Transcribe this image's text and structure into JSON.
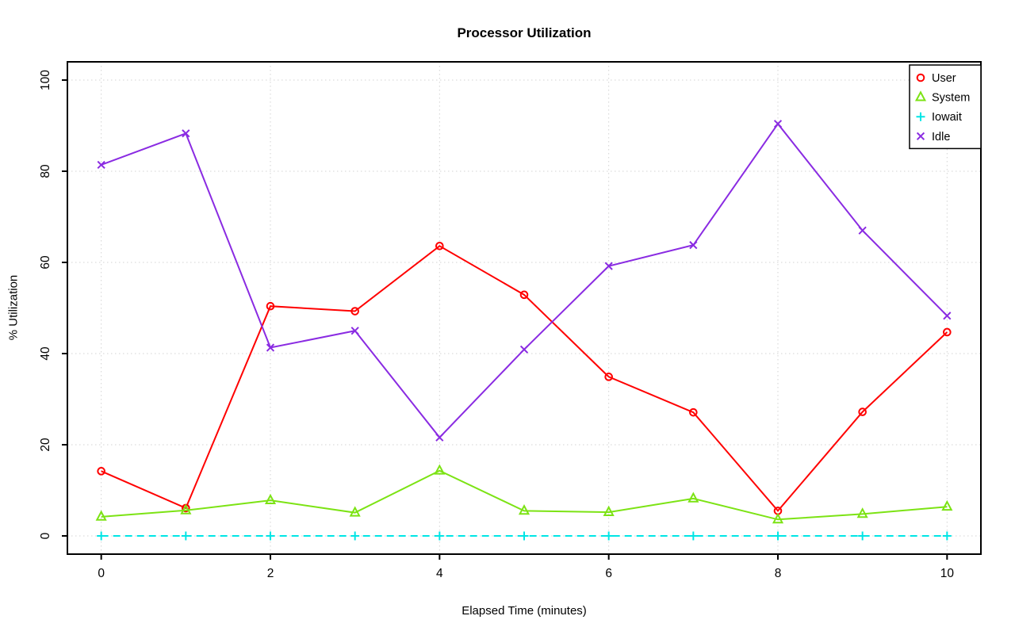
{
  "chart_data": {
    "type": "line",
    "title": "Processor Utilization",
    "xlabel": "Elapsed Time (minutes)",
    "ylabel": "% Utilization",
    "x": [
      0,
      1,
      2,
      3,
      4,
      5,
      6,
      7,
      8,
      9,
      10
    ],
    "xlim": [
      0,
      10
    ],
    "ylim": [
      0,
      100
    ],
    "xticks": [
      0,
      2,
      4,
      6,
      8,
      10
    ],
    "yticks": [
      0,
      20,
      40,
      60,
      80,
      100
    ],
    "grid": true,
    "grid_color": "#d3d3d3",
    "axis_color": "#000000",
    "legend_position": "top-right",
    "series": [
      {
        "name": "User",
        "marker": "circle",
        "line_style": "solid",
        "color": "#ff0000",
        "values": [
          14.2,
          6.1,
          50.4,
          49.3,
          63.6,
          52.9,
          34.9,
          27.1,
          5.5,
          27.2,
          44.7
        ]
      },
      {
        "name": "System",
        "marker": "triangle",
        "line_style": "solid",
        "color": "#7ce314",
        "values": [
          4.2,
          5.6,
          7.8,
          5.1,
          14.3,
          5.5,
          5.2,
          8.2,
          3.6,
          4.8,
          6.4
        ]
      },
      {
        "name": "Iowait",
        "marker": "plus",
        "line_style": "dashed",
        "color": "#00e5e5",
        "values": [
          0,
          0,
          0,
          0,
          0,
          0,
          0,
          0,
          0,
          0,
          0
        ]
      },
      {
        "name": "Idle",
        "marker": "x",
        "line_style": "solid",
        "color": "#8a2be2",
        "values": [
          81.4,
          88.3,
          41.3,
          45.0,
          21.6,
          40.9,
          59.2,
          63.8,
          90.4,
          67.0,
          48.3
        ]
      }
    ]
  }
}
